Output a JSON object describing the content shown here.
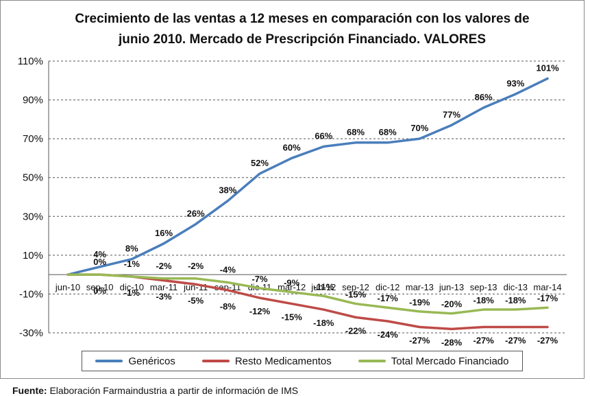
{
  "chart_data": {
    "type": "line",
    "title": "Crecimiento de las ventas a 12 meses en comparación con los valores de junio 2010. Mercado de Prescripción Financiado. VALORES",
    "title_lines": [
      "Crecimiento de las ventas a 12 meses en comparación con los valores de",
      "junio 2010. Mercado de Prescripción Financiado. VALORES"
    ],
    "xlabel": "",
    "ylabel": "",
    "categories": [
      "jun-10",
      "sep-10",
      "dic-10",
      "mar-11",
      "jun-11",
      "sep-11",
      "dic-11",
      "mar-12",
      "jun-12",
      "sep-12",
      "dic-12",
      "mar-13",
      "jun-13",
      "sep-13",
      "dic-13",
      "mar-14"
    ],
    "ylim": [
      -30,
      110
    ],
    "yticks": [
      "110%",
      "90%",
      "70%",
      "50%",
      "30%",
      "10%",
      "-10%",
      "-30%"
    ],
    "ytick_values": [
      110,
      90,
      70,
      50,
      30,
      10,
      -10,
      -30
    ],
    "grid": "horizontal dashed",
    "legend_position": "bottom",
    "series": [
      {
        "name": "Genéricos",
        "color": "#4a7ebb",
        "values": [
          0,
          4,
          8,
          16,
          26,
          38,
          52,
          60,
          66,
          68,
          68,
          70,
          77,
          86,
          93,
          101
        ],
        "labels": [
          "",
          "4%",
          "8%",
          "16%",
          "26%",
          "38%",
          "52%",
          "60%",
          "66%",
          "68%",
          "68%",
          "70%",
          "77%",
          "86%",
          "93%",
          "101%"
        ]
      },
      {
        "name": "Resto Medicamentos",
        "color": "#be4b48",
        "values": [
          0,
          0,
          -1,
          -3,
          -5,
          -8,
          -12,
          -15,
          -18,
          -22,
          -24,
          -27,
          -28,
          -27,
          -27,
          -27
        ],
        "labels": [
          "",
          "0%",
          "-1%",
          "-3%",
          "-5%",
          "-8%",
          "-12%",
          "-15%",
          "-18%",
          "-22%",
          "-24%",
          "-27%",
          "-28%",
          "-27%",
          "-27%",
          "-27%"
        ]
      },
      {
        "name": "Total Mercado Financiado",
        "color": "#98b954",
        "values": [
          0,
          0,
          -1,
          -2,
          -2,
          -4,
          -7,
          -9,
          -11,
          -15,
          -17,
          -19,
          -20,
          -18,
          -18,
          -17
        ],
        "labels": [
          "",
          "0%",
          "-1%",
          "-2%",
          "-2%",
          "-4%",
          "-7%",
          "-9%",
          "-11%",
          "-15%",
          "-17%",
          "-19%",
          "-20%",
          "-18%",
          "-18%",
          "-17%"
        ]
      }
    ]
  },
  "source": {
    "label": "Fuente:",
    "text": "Elaboración Farmaindustria a partir de información de IMS"
  }
}
